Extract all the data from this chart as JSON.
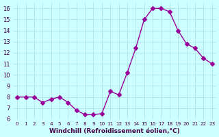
{
  "x": [
    0,
    1,
    2,
    3,
    4,
    5,
    6,
    7,
    8,
    9,
    10,
    11,
    12,
    13,
    14,
    15,
    16,
    17,
    18,
    19,
    20,
    21,
    22,
    23
  ],
  "y": [
    8.0,
    8.0,
    8.0,
    7.5,
    7.8,
    8.0,
    7.5,
    6.8,
    6.4,
    6.4,
    6.5,
    8.5,
    8.2,
    10.2,
    12.4,
    15.0,
    16.0,
    16.0,
    15.7,
    14.0,
    12.8,
    12.4,
    11.5,
    11.0
  ],
  "line_color": "#990099",
  "marker": "D",
  "marker_size": 3,
  "bg_color": "#ccffff",
  "grid_color": "#aadddd",
  "xlabel": "Windchill (Refroidissement éolien,°C)",
  "xlabel_color": "#440044",
  "tick_color": "#440044",
  "ylim": [
    6,
    16.5
  ],
  "yticks": [
    6,
    7,
    8,
    9,
    10,
    11,
    12,
    13,
    14,
    15,
    16
  ],
  "xticks": [
    0,
    1,
    2,
    3,
    4,
    5,
    6,
    7,
    8,
    9,
    10,
    11,
    12,
    13,
    14,
    15,
    16,
    17,
    18,
    19,
    20,
    21,
    22,
    23
  ],
  "xlim": [
    -0.5,
    23.5
  ]
}
